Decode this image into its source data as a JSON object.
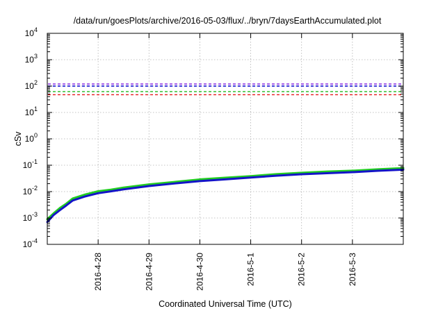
{
  "chart_data": {
    "type": "line",
    "title": "/data/run/goesPlots/archive/2016-05-03/flux/../bryn/7daysEarthAccumulated.plot",
    "xlabel": "Coordinated Universal Time (UTC)",
    "ylabel": "cSv",
    "yscale": "log",
    "ylim": [
      0.0001,
      10000
    ],
    "y_ticks": [
      {
        "value": 0.0001,
        "base": "10",
        "exp": "-4"
      },
      {
        "value": 0.001,
        "base": "10",
        "exp": "-3"
      },
      {
        "value": 0.01,
        "base": "10",
        "exp": "-2"
      },
      {
        "value": 0.1,
        "base": "10",
        "exp": "-1"
      },
      {
        "value": 1,
        "base": "10",
        "exp": "0"
      },
      {
        "value": 10,
        "base": "10",
        "exp": "1"
      },
      {
        "value": 100,
        "base": "10",
        "exp": "2"
      },
      {
        "value": 1000,
        "base": "10",
        "exp": "3"
      },
      {
        "value": 10000,
        "base": "10",
        "exp": "4"
      }
    ],
    "xlim": [
      "2016-04-27 00:00",
      "2016-05-04 00:00"
    ],
    "x_ticks": [
      {
        "value": "2016-04-28 00:00",
        "label": "2016-4-28"
      },
      {
        "value": "2016-04-29 00:00",
        "label": "2016-4-29"
      },
      {
        "value": "2016-04-30 00:00",
        "label": "2016-4-30"
      },
      {
        "value": "2016-05-01 00:00",
        "label": "2016-5-1"
      },
      {
        "value": "2016-05-02 00:00",
        "label": "2016-5-2"
      },
      {
        "value": "2016-05-03 00:00",
        "label": "2016-5-3"
      }
    ],
    "grid": true,
    "thresholds": [
      {
        "value": 120,
        "color": "#8a2be2"
      },
      {
        "value": 100,
        "color": "#0000cd"
      },
      {
        "value": 62,
        "color": "#22bb22"
      },
      {
        "value": 47,
        "color": "#e41a1c"
      }
    ],
    "series": [
      {
        "color": "#22cc22",
        "x": [
          "2016-04-27 00:00",
          "2016-04-27 03:00",
          "2016-04-27 06:00",
          "2016-04-27 09:00",
          "2016-04-27 12:00",
          "2016-04-27 18:00",
          "2016-04-28 00:00",
          "2016-04-28 06:00",
          "2016-04-28 12:00",
          "2016-04-29 00:00",
          "2016-04-29 12:00",
          "2016-04-30 00:00",
          "2016-04-30 12:00",
          "2016-05-01 00:00",
          "2016-05-01 12:00",
          "2016-05-02 00:00",
          "2016-05-02 12:00",
          "2016-05-03 00:00",
          "2016-05-03 12:00",
          "2016-05-04 00:00"
        ],
        "y": [
          0.0009,
          0.0015,
          0.0024,
          0.0035,
          0.0055,
          0.0078,
          0.0103,
          0.0118,
          0.0142,
          0.0188,
          0.0232,
          0.029,
          0.0335,
          0.0385,
          0.046,
          0.0518,
          0.0575,
          0.062,
          0.07,
          0.078
        ]
      },
      {
        "color": "#1414c8",
        "x": [
          "2016-04-27 00:00",
          "2016-04-27 03:00",
          "2016-04-27 06:00",
          "2016-04-27 09:00",
          "2016-04-27 12:00",
          "2016-04-27 18:00",
          "2016-04-28 00:00",
          "2016-04-28 06:00",
          "2016-04-28 12:00",
          "2016-04-29 00:00",
          "2016-04-29 12:00",
          "2016-04-30 00:00",
          "2016-04-30 12:00",
          "2016-05-01 00:00",
          "2016-05-01 12:00",
          "2016-05-02 00:00",
          "2016-05-02 12:00",
          "2016-05-03 00:00",
          "2016-05-03 12:00",
          "2016-05-04 00:00"
        ],
        "y": [
          0.0007,
          0.0013,
          0.002,
          0.003,
          0.0046,
          0.0066,
          0.0087,
          0.0102,
          0.0122,
          0.0162,
          0.0203,
          0.025,
          0.029,
          0.034,
          0.04,
          0.0455,
          0.05,
          0.0545,
          0.0615,
          0.068
        ]
      }
    ]
  }
}
